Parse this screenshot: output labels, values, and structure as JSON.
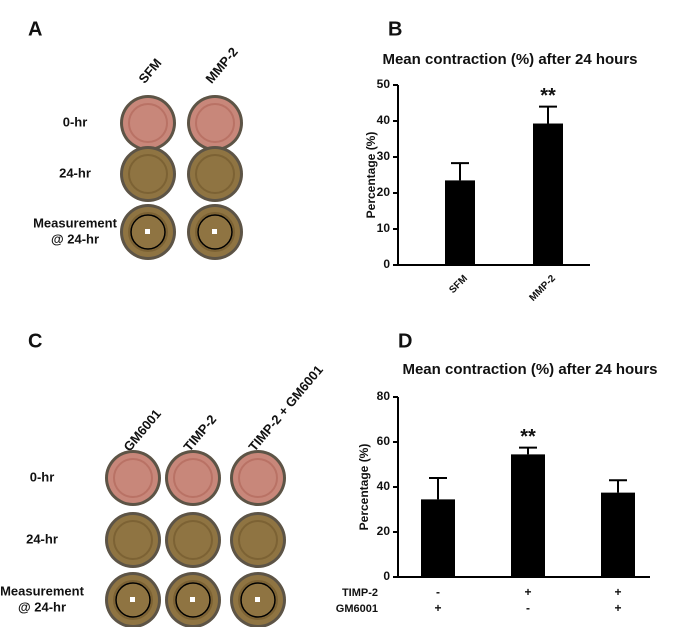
{
  "panel_labels": [
    "A",
    "B",
    "C",
    "D"
  ],
  "panel_a": {
    "columns": [
      "SFM",
      "MMP-2"
    ],
    "rows": [
      "0-hr",
      "24-hr",
      [
        "Measurement",
        "@ 24-hr"
      ]
    ]
  },
  "panel_c": {
    "columns": [
      "GM6001",
      "TIMP-2",
      "TIMP-2 + GM6001"
    ],
    "rows": [
      "0-hr",
      "24-hr",
      [
        "Measurement",
        "@ 24-hr"
      ]
    ]
  },
  "chart_data": [
    {
      "type": "bar",
      "title": "Mean contraction (%) after 24 hours",
      "ylabel": "Percentage (%)",
      "categories": [
        "SFM",
        "MMP-2"
      ],
      "values": [
        23.5,
        39.3
      ],
      "errors": [
        4.8,
        4.7
      ],
      "color": "#000000",
      "ylim": [
        0,
        50
      ],
      "yticks": [
        0,
        10,
        20,
        30,
        40,
        50
      ],
      "annotations": [
        {
          "text": "**",
          "index": 1
        }
      ]
    },
    {
      "type": "bar",
      "title": "Mean contraction (%) after 24 hours",
      "ylabel": "Percentage (%)",
      "categories": [
        null,
        null,
        null
      ],
      "values": [
        34.5,
        54.5,
        37.5
      ],
      "errors": [
        9.5,
        3,
        5.5
      ],
      "color": "#000000",
      "ylim": [
        0,
        80
      ],
      "yticks": [
        0,
        20,
        40,
        60,
        80
      ],
      "condition_rows": [
        "TIMP-2",
        "GM6001"
      ],
      "condition_table": [
        [
          "-",
          "+",
          "+"
        ],
        [
          "+",
          "-",
          "+"
        ]
      ],
      "annotations": [
        {
          "text": "**",
          "index": 1
        }
      ]
    }
  ]
}
